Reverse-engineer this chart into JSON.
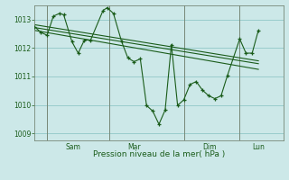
{
  "background_color": "#cce8e8",
  "grid_color": "#99cccc",
  "line_color": "#1a5c1a",
  "xlabel": "Pression niveau de la mer( hPa )",
  "ylim": [
    1008.75,
    1013.5
  ],
  "yticks": [
    1009,
    1010,
    1011,
    1012,
    1013
  ],
  "xlim": [
    0,
    240
  ],
  "xtick_labels": [
    "Sam",
    "Mar",
    "Dim",
    "Lun"
  ],
  "xtick_label_positions": [
    30,
    90,
    162,
    210
  ],
  "vline_positions": [
    12,
    72,
    144,
    198
  ],
  "series1": [
    [
      0,
      1012.75
    ],
    [
      6,
      1012.55
    ],
    [
      12,
      1012.45
    ],
    [
      18,
      1013.12
    ],
    [
      24,
      1013.22
    ],
    [
      28,
      1013.17
    ],
    [
      36,
      1012.22
    ],
    [
      42,
      1011.82
    ],
    [
      48,
      1012.28
    ],
    [
      54,
      1012.28
    ],
    [
      66,
      1013.32
    ],
    [
      70,
      1013.42
    ],
    [
      76,
      1013.22
    ],
    [
      84,
      1012.22
    ],
    [
      90,
      1011.65
    ],
    [
      96,
      1011.52
    ],
    [
      102,
      1011.62
    ],
    [
      108,
      1009.98
    ],
    [
      114,
      1009.78
    ],
    [
      120,
      1009.32
    ],
    [
      126,
      1009.82
    ],
    [
      132,
      1012.12
    ],
    [
      138,
      1009.98
    ],
    [
      144,
      1010.18
    ],
    [
      150,
      1010.72
    ],
    [
      156,
      1010.82
    ],
    [
      162,
      1010.52
    ],
    [
      168,
      1010.32
    ],
    [
      174,
      1010.22
    ],
    [
      180,
      1010.32
    ],
    [
      186,
      1011.02
    ],
    [
      198,
      1012.32
    ],
    [
      204,
      1011.82
    ],
    [
      210,
      1011.82
    ],
    [
      216,
      1012.62
    ]
  ],
  "series_trend1": [
    [
      0,
      1012.82
    ],
    [
      216,
      1011.55
    ]
  ],
  "series_trend2": [
    [
      0,
      1012.72
    ],
    [
      216,
      1011.45
    ]
  ],
  "series_trend3": [
    [
      0,
      1012.62
    ],
    [
      216,
      1011.25
    ]
  ]
}
